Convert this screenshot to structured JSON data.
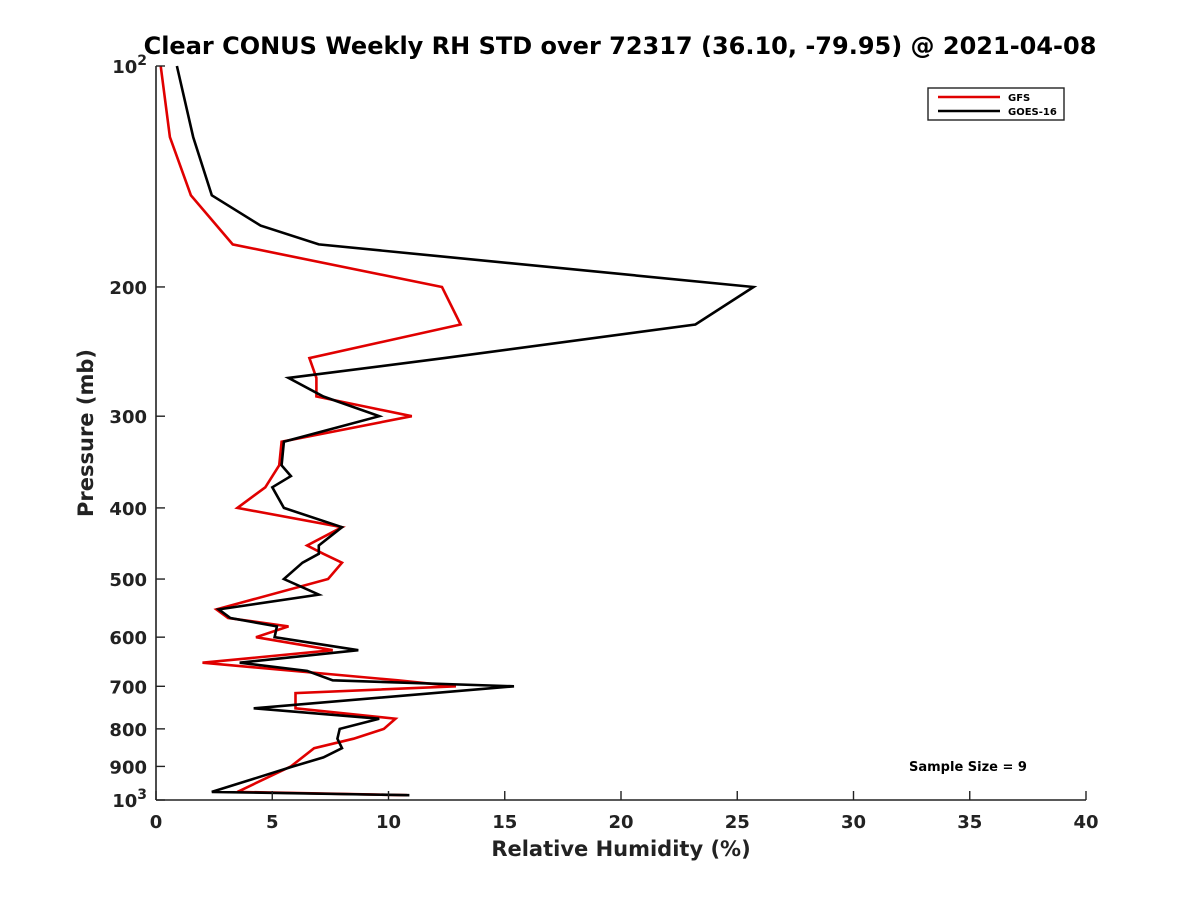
{
  "chart_data": {
    "type": "line",
    "title": "Clear CONUS Weekly RH STD over 72317 (36.10, -79.95) @ 2021-04-08",
    "xlabel": "Relative Humidity (%)",
    "ylabel": "Pressure (mb)",
    "xlim": [
      0,
      40
    ],
    "ylim": [
      100,
      1000
    ],
    "y_scale": "log",
    "y_reversed": true,
    "grid": false,
    "legend_position": "top-right",
    "x_ticks": [
      0,
      5,
      10,
      15,
      20,
      25,
      30,
      35,
      40
    ],
    "x_tick_labels": [
      "0",
      "5",
      "10",
      "15",
      "20",
      "25",
      "30",
      "35",
      "40"
    ],
    "y_ticks": [
      {
        "value": 100,
        "base": "10",
        "exp": "2"
      },
      {
        "value": 200,
        "label": "200"
      },
      {
        "value": 300,
        "label": "300"
      },
      {
        "value": 400,
        "label": "400"
      },
      {
        "value": 500,
        "label": "500"
      },
      {
        "value": 600,
        "label": "600"
      },
      {
        "value": 700,
        "label": "700"
      },
      {
        "value": 800,
        "label": "800"
      },
      {
        "value": 900,
        "label": "900"
      },
      {
        "value": 1000,
        "base": "10",
        "exp": "3"
      }
    ],
    "annotation": "Sample Size = 9",
    "series": [
      {
        "name": "GFS",
        "color": "#e00000",
        "points": [
          [
            0.2,
            100
          ],
          [
            0.6,
            125
          ],
          [
            1.5,
            150
          ],
          [
            3.3,
            175
          ],
          [
            12.3,
            200
          ],
          [
            13.1,
            225
          ],
          [
            6.6,
            250
          ],
          [
            6.9,
            266
          ],
          [
            6.9,
            282
          ],
          [
            11.0,
            300
          ],
          [
            5.4,
            325
          ],
          [
            5.3,
            350
          ],
          [
            4.7,
            375
          ],
          [
            3.5,
            400
          ],
          [
            8.0,
            425
          ],
          [
            6.5,
            450
          ],
          [
            7.2,
            462
          ],
          [
            8.0,
            475
          ],
          [
            7.4,
            500
          ],
          [
            2.6,
            550
          ],
          [
            3.1,
            565
          ],
          [
            5.7,
            580
          ],
          [
            4.3,
            600
          ],
          [
            7.6,
            625
          ],
          [
            2.0,
            650
          ],
          [
            10.4,
            687
          ],
          [
            12.9,
            700
          ],
          [
            6.0,
            715
          ],
          [
            6.0,
            750
          ],
          [
            10.3,
            775
          ],
          [
            9.8,
            800
          ],
          [
            8.5,
            825
          ],
          [
            6.8,
            850
          ],
          [
            5.8,
            900
          ],
          [
            3.5,
            975
          ],
          [
            10.8,
            985
          ]
        ]
      },
      {
        "name": "GOES-16",
        "color": "#000000",
        "points": [
          [
            0.9,
            100
          ],
          [
            1.6,
            125
          ],
          [
            2.4,
            150
          ],
          [
            4.5,
            165
          ],
          [
            7.0,
            175
          ],
          [
            25.7,
            200
          ],
          [
            23.2,
            225
          ],
          [
            12.4,
            250
          ],
          [
            5.7,
            266
          ],
          [
            7.2,
            282
          ],
          [
            9.6,
            300
          ],
          [
            5.5,
            325
          ],
          [
            5.4,
            350
          ],
          [
            5.8,
            362
          ],
          [
            5.0,
            375
          ],
          [
            5.5,
            400
          ],
          [
            8.0,
            425
          ],
          [
            7.0,
            450
          ],
          [
            7.0,
            462
          ],
          [
            6.3,
            475
          ],
          [
            5.5,
            500
          ],
          [
            7.0,
            525
          ],
          [
            2.7,
            550
          ],
          [
            3.2,
            565
          ],
          [
            5.2,
            580
          ],
          [
            5.1,
            600
          ],
          [
            8.7,
            625
          ],
          [
            3.6,
            650
          ],
          [
            6.5,
            667
          ],
          [
            7.6,
            687
          ],
          [
            15.4,
            700
          ],
          [
            4.2,
            750
          ],
          [
            9.6,
            775
          ],
          [
            7.9,
            800
          ],
          [
            7.8,
            825
          ],
          [
            8.0,
            850
          ],
          [
            7.2,
            875
          ],
          [
            5.9,
            900
          ],
          [
            2.4,
            975
          ],
          [
            10.9,
            985
          ]
        ]
      }
    ]
  }
}
